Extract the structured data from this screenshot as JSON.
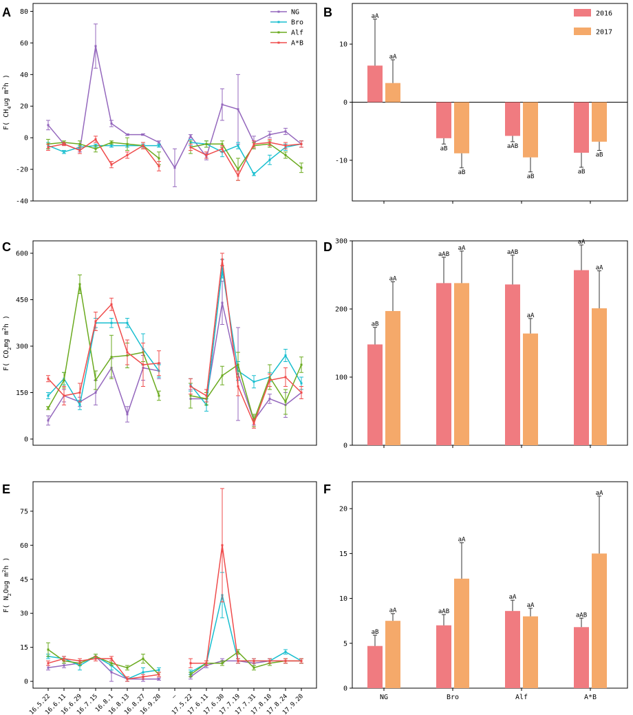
{
  "colors": {
    "NG": "#9467bd",
    "Bro": "#17becf",
    "Alf": "#6aaa1e",
    "A*B": "#ef4b4b",
    "y2016": "#f07b80",
    "y2017": "#f5a96a",
    "err": "#333333"
  },
  "x_dates": [
    "16.5.22",
    "16.6.11",
    "16.6.29",
    "16.7.15",
    "16.8.1",
    "16.8.13",
    "16.8.27",
    "16.9.20",
    "—",
    "17.5.22",
    "17.6.11",
    "17.6.30",
    "17.7.19",
    "17.7.31",
    "17.8.10",
    "17.8.24",
    "17.9.20"
  ],
  "chart_data": [
    {
      "id": "A",
      "letter": "A",
      "type": "line",
      "ylabel_parts": [
        "F( CH",
        "4",
        "ug m",
        "2",
        "h )"
      ],
      "ylim": [
        -40,
        85
      ],
      "yticks": [
        -40,
        -20,
        0,
        20,
        40,
        60,
        80
      ],
      "yticklabels": [
        "-40",
        "-20",
        "0",
        "20",
        "40",
        "60",
        "80"
      ],
      "legend": [
        "NG",
        "Bro",
        "Alf",
        "A*B"
      ],
      "series": [
        {
          "name": "NG",
          "values": [
            8,
            -4,
            -8,
            58,
            9,
            2,
            2,
            -3,
            -19,
            1,
            -12,
            21,
            18,
            -3,
            2,
            4,
            -4
          ],
          "errors": [
            3,
            0.5,
            1,
            14,
            2,
            0.5,
            0.5,
            1,
            12,
            1,
            2,
            10,
            22,
            4,
            2,
            2,
            2
          ]
        },
        {
          "name": "Bro",
          "values": [
            -5,
            -9,
            -6,
            -5,
            -5,
            -5,
            -5,
            -5,
            null,
            -3,
            -4,
            -9,
            -5,
            -23,
            -14,
            -6,
            -4
          ],
          "errors": [
            2,
            1,
            1,
            1,
            1,
            1,
            1,
            1,
            0,
            2,
            2,
            3,
            2,
            1,
            3,
            2,
            2
          ]
        },
        {
          "name": "Alf",
          "values": [
            -4,
            -3,
            -4,
            -7,
            -3,
            -4,
            -5,
            -13,
            null,
            -6,
            -4,
            -4,
            -20,
            -5,
            -4,
            -11,
            -19
          ],
          "errors": [
            3,
            1,
            2,
            2,
            1,
            4,
            2,
            4,
            0,
            4,
            2,
            2,
            7,
            2,
            2,
            2,
            3
          ]
        },
        {
          "name": "A*B",
          "values": [
            -6,
            -4,
            -8,
            -1,
            -17,
            -11,
            -5,
            -18,
            null,
            -6,
            -11,
            -7,
            -24,
            -4,
            -3,
            -5,
            -4
          ],
          "errors": [
            2,
            1,
            2,
            2,
            2,
            2,
            2,
            3,
            0,
            2,
            2,
            2,
            3,
            2,
            2,
            2,
            2
          ]
        }
      ]
    },
    {
      "id": "B",
      "letter": "B",
      "type": "bar",
      "ylim": [
        -17,
        17
      ],
      "yticks": [
        -10,
        0,
        10
      ],
      "yticklabels": [
        "-10",
        "0",
        "10"
      ],
      "categories": [
        "NG",
        "Bro",
        "Alf",
        "A*B"
      ],
      "show_category_labels": false,
      "legend": [
        "2016",
        "2017"
      ],
      "series": [
        {
          "name": "2016",
          "values": [
            6.3,
            -6.2,
            -5.8,
            -8.7
          ],
          "errors": [
            8,
            1,
            1,
            2.5
          ],
          "labels": [
            "aA",
            "aB",
            "aAB",
            "aB"
          ]
        },
        {
          "name": "2017",
          "values": [
            3.3,
            -8.8,
            -9.5,
            -6.8
          ],
          "errors": [
            4,
            2.5,
            2.5,
            1.5
          ],
          "labels": [
            "aA",
            "aB",
            "aB",
            "aB"
          ]
        }
      ]
    },
    {
      "id": "C",
      "letter": "C",
      "type": "line",
      "ylabel_parts": [
        "F( CO",
        "2",
        "mg m",
        "2",
        "h )"
      ],
      "ylim": [
        -20,
        640
      ],
      "yticks": [
        0,
        150,
        300,
        450,
        600
      ],
      "yticklabels": [
        "0",
        "150",
        "300",
        "450",
        "600"
      ],
      "series": [
        {
          "name": "NG",
          "values": [
            60,
            140,
            120,
            150,
            230,
            80,
            230,
            220,
            null,
            130,
            130,
            440,
            210,
            60,
            130,
            110,
            150
          ],
          "errors": [
            15,
            20,
            15,
            40,
            30,
            25,
            40,
            25,
            0,
            30,
            20,
            70,
            150,
            15,
            15,
            40,
            20
          ]
        },
        {
          "name": "Bro",
          "values": [
            140,
            195,
            110,
            375,
            375,
            375,
            290,
            220,
            null,
            175,
            110,
            550,
            220,
            185,
            200,
            270,
            180
          ],
          "errors": [
            10,
            20,
            15,
            15,
            15,
            15,
            50,
            20,
            0,
            20,
            20,
            30,
            30,
            20,
            15,
            20,
            20
          ]
        },
        {
          "name": "Alf",
          "values": [
            100,
            190,
            500,
            190,
            265,
            270,
            280,
            140,
            null,
            140,
            130,
            205,
            240,
            60,
            200,
            120,
            240
          ],
          "errors": [
            5,
            25,
            30,
            30,
            70,
            40,
            30,
            15,
            0,
            40,
            20,
            30,
            40,
            20,
            40,
            40,
            25
          ]
        },
        {
          "name": "A*B",
          "values": [
            195,
            140,
            150,
            380,
            435,
            280,
            240,
            245,
            null,
            170,
            140,
            580,
            170,
            50,
            190,
            200,
            150
          ],
          "errors": [
            10,
            30,
            30,
            30,
            20,
            40,
            70,
            40,
            0,
            25,
            20,
            20,
            30,
            15,
            20,
            30,
            20
          ]
        }
      ]
    },
    {
      "id": "D",
      "letter": "D",
      "type": "bar",
      "ylim": [
        0,
        300
      ],
      "yticks": [
        0,
        100,
        200,
        300
      ],
      "yticklabels": [
        "0",
        "100",
        "200",
        "300"
      ],
      "categories": [
        "NG",
        "Bro",
        "Alf",
        "A*B"
      ],
      "show_category_labels": false,
      "series": [
        {
          "name": "2016",
          "values": [
            148,
            238,
            236,
            257
          ],
          "errors": [
            25,
            38,
            43,
            37
          ],
          "labels": [
            "aB",
            "aAB",
            "aAB",
            "aA"
          ]
        },
        {
          "name": "2017",
          "values": [
            197,
            238,
            164,
            201
          ],
          "errors": [
            43,
            47,
            22,
            55
          ],
          "labels": [
            "aA",
            "aA",
            "aA",
            "aA"
          ]
        }
      ]
    },
    {
      "id": "E",
      "letter": "E",
      "type": "line",
      "ylabel_parts": [
        "F( N",
        "2",
        "Oug m",
        "2",
        "h )"
      ],
      "ylim": [
        -3,
        88
      ],
      "yticks": [
        0,
        15,
        30,
        45,
        60,
        75
      ],
      "yticklabels": [
        "0",
        "15",
        "30",
        "45",
        "60",
        "75"
      ],
      "series": [
        {
          "name": "NG",
          "values": [
            6,
            7,
            8,
            11,
            4,
            1,
            1,
            1,
            null,
            2,
            7,
            9,
            9,
            8,
            9,
            9,
            9
          ],
          "errors": [
            1,
            1,
            1,
            1,
            4,
            1,
            1,
            0.5,
            0,
            1,
            1,
            1,
            1,
            1,
            1,
            1,
            1
          ]
        },
        {
          "name": "Bro",
          "values": [
            11,
            10,
            7,
            11,
            7,
            1,
            4,
            5,
            null,
            4,
            8,
            38,
            9,
            9,
            9,
            13,
            9
          ],
          "errors": [
            1,
            1,
            2,
            1,
            2,
            1,
            2,
            1,
            0,
            1,
            1,
            10,
            1,
            1,
            1,
            1,
            1
          ]
        },
        {
          "name": "Alf",
          "values": [
            14,
            9,
            8,
            11,
            8,
            6,
            10,
            3,
            null,
            3,
            8,
            8,
            13,
            6,
            8,
            9,
            9
          ],
          "errors": [
            3,
            1,
            1,
            1,
            1,
            1,
            2,
            1,
            0,
            1,
            1,
            1,
            1,
            1,
            1,
            1,
            1
          ]
        },
        {
          "name": "A*B",
          "values": [
            8,
            10,
            9,
            10,
            10,
            1,
            2,
            3,
            null,
            8,
            8,
            60,
            9,
            9,
            9,
            9,
            9
          ],
          "errors": [
            1,
            1,
            1,
            1,
            1,
            1,
            1,
            1,
            0,
            2,
            1,
            25,
            1,
            1,
            1,
            1,
            1
          ]
        }
      ]
    },
    {
      "id": "F",
      "letter": "F",
      "type": "bar",
      "ylim": [
        0,
        23
      ],
      "yticks": [
        0,
        5,
        10,
        15,
        20
      ],
      "yticklabels": [
        "0",
        "5",
        "10",
        "15",
        "20"
      ],
      "categories": [
        "NG",
        "Bro",
        "Alf",
        "A*B"
      ],
      "show_category_labels": true,
      "series": [
        {
          "name": "2016",
          "values": [
            4.7,
            7,
            8.6,
            6.8
          ],
          "errors": [
            1.2,
            1.2,
            1.2,
            1
          ],
          "labels": [
            "aB",
            "aAB",
            "aA",
            "aAB"
          ]
        },
        {
          "name": "2017",
          "values": [
            7.5,
            12.2,
            8,
            15
          ],
          "errors": [
            0.8,
            4,
            0.9,
            6.4
          ],
          "labels": [
            "aA",
            "aA",
            "aA",
            "aA"
          ]
        }
      ]
    }
  ]
}
